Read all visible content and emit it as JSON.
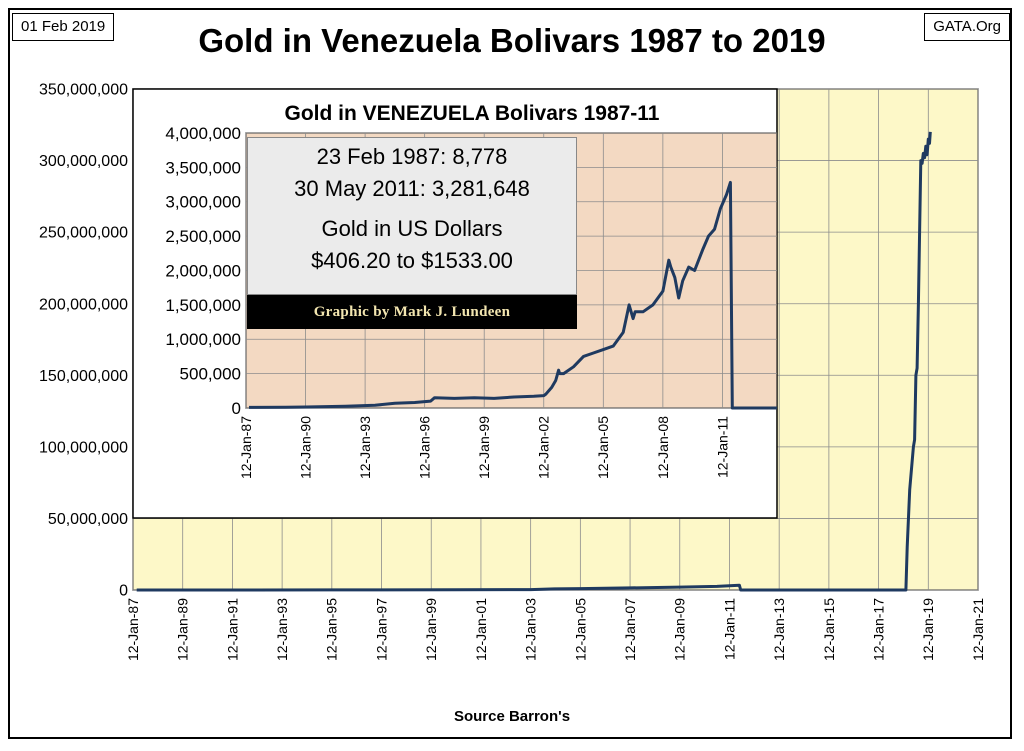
{
  "header": {
    "date": "01 Feb 2019",
    "source_site": "GATA.Org",
    "title": "Gold in Venezuela Bolivars 1987 to 2019"
  },
  "footer": {
    "source": "Source Barron's"
  },
  "info_box": {
    "line1": "23 Feb 1987: 8,778",
    "line2": "30 May 2011: 3,281,648",
    "line3": "Gold in US Dollars",
    "line4": "$406.20 to $1533.00"
  },
  "credit": "Graphic by Mark J. Lundeen",
  "colors": {
    "line": "#1f3a60",
    "main_plot_bg": "#fdf8c8",
    "inset_plot_bg": "#f3d9c2",
    "grid": "#8c8c8c"
  },
  "chart_data": [
    {
      "id": "main",
      "type": "line",
      "title": "Gold in Venezuela Bolivars 1987 to 2019",
      "xlabel": "Source Barron's",
      "ylabel": "",
      "xlim": [
        1987.0,
        2021.0
      ],
      "ylim": [
        0,
        350000000
      ],
      "y_ticks": [
        0,
        50000000,
        100000000,
        150000000,
        200000000,
        250000000,
        300000000,
        350000000
      ],
      "y_tick_labels": [
        "0",
        "50,000,000",
        "100,000,000",
        "150,000,000",
        "200,000,000",
        "250,000,000",
        "300,000,000",
        "350,000,000"
      ],
      "x_ticks": [
        1987,
        1989,
        1991,
        1993,
        1995,
        1997,
        1999,
        2001,
        2003,
        2005,
        2007,
        2009,
        2011,
        2013,
        2015,
        2017,
        2019,
        2021
      ],
      "x_tick_labels": [
        "12-Jan-87",
        "12-Jan-89",
        "12-Jan-91",
        "12-Jan-93",
        "12-Jan-95",
        "12-Jan-97",
        "12-Jan-99",
        "12-Jan-01",
        "12-Jan-03",
        "12-Jan-05",
        "12-Jan-07",
        "12-Jan-09",
        "12-Jan-11",
        "12-Jan-13",
        "12-Jan-15",
        "12-Jan-17",
        "12-Jan-19",
        "12-Jan-21"
      ],
      "grid": true,
      "series": [
        {
          "x": [
            1987.15,
            1990,
            1995,
            2000,
            2003.0,
            2003.95,
            2005,
            2007,
            2009,
            2010.5,
            2011.4,
            2011.45,
            2018.1,
            2018.15,
            2018.25,
            2018.4,
            2018.45,
            2018.5,
            2018.55,
            2018.6,
            2018.65,
            2018.7,
            2018.75,
            2018.8,
            2018.85,
            2018.9,
            2018.95,
            2019.0,
            2019.05,
            2019.08
          ],
          "y": [
            8778,
            15000,
            60000,
            200000,
            300000,
            800000,
            1000000,
            1500000,
            2000000,
            2500000,
            3281648,
            0,
            0,
            30000000,
            70000000,
            100000000,
            105000000,
            150000000,
            155000000,
            200000000,
            250000000,
            300000000,
            298000000,
            305000000,
            302000000,
            310000000,
            304000000,
            315000000,
            312000000,
            320000000
          ]
        }
      ]
    },
    {
      "id": "inset",
      "type": "line",
      "title": "Gold in VENEZUELA Bolivars 1987-11",
      "xlim": [
        1987.0,
        2013.75
      ],
      "ylim": [
        0,
        4000000
      ],
      "y_ticks": [
        0,
        500000,
        1000000,
        1500000,
        2000000,
        2500000,
        3000000,
        3500000,
        4000000
      ],
      "y_tick_labels": [
        "0",
        "500,000",
        "1,000,000",
        "1,500,000",
        "2,000,000",
        "2,500,000",
        "3,000,000",
        "3,500,000",
        "4,000,000"
      ],
      "x_ticks": [
        1987,
        1990,
        1993,
        1996,
        1999,
        2002,
        2005,
        2008,
        2011
      ],
      "x_tick_labels": [
        "12-Jan-87",
        "12-Jan-90",
        "12-Jan-93",
        "12-Jan-96",
        "12-Jan-99",
        "12-Jan-02",
        "12-Jan-05",
        "12-Jan-08",
        "12-Jan-11"
      ],
      "grid": true,
      "series": [
        {
          "x": [
            1987.15,
            1989,
            1990,
            1992,
            1993.5,
            1994.5,
            1995.5,
            1996.3,
            1996.5,
            1997.5,
            1998.5,
            1999.5,
            2000.5,
            2001.5,
            2002.0,
            2002.1,
            2002.4,
            2002.6,
            2002.75,
            2002.8,
            2003,
            2003.5,
            2004,
            2004.5,
            2005,
            2005.5,
            2006,
            2006.3,
            2006.5,
            2006.6,
            2007,
            2007.5,
            2008,
            2008.3,
            2008.4,
            2008.6,
            2008.8,
            2009,
            2009.3,
            2009.6,
            2010,
            2010.3,
            2010.6,
            2010.9,
            2011.2,
            2011.4,
            2011.5,
            2013.75
          ],
          "y": [
            8778,
            12000,
            15000,
            25000,
            40000,
            70000,
            80000,
            100000,
            150000,
            140000,
            150000,
            140000,
            160000,
            170000,
            180000,
            200000,
            300000,
            400000,
            550000,
            500000,
            500000,
            600000,
            750000,
            800000,
            850000,
            900000,
            1100000,
            1500000,
            1300000,
            1400000,
            1400000,
            1500000,
            1700000,
            2150000,
            2050000,
            1900000,
            1600000,
            1850000,
            2050000,
            2000000,
            2300000,
            2500000,
            2600000,
            2900000,
            3100000,
            3281648,
            0,
            0
          ]
        }
      ]
    }
  ]
}
